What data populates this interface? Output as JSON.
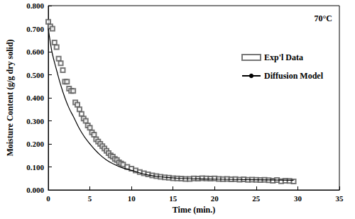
{
  "chart_data": {
    "type": "scatter",
    "annotation": "70°C",
    "x_label": "Time (min.)",
    "y_label": "Moisture Content (g/g dry solid)",
    "xlim": [
      0,
      35
    ],
    "xticks": [
      0,
      5,
      10,
      15,
      20,
      25,
      30,
      35
    ],
    "ylim": [
      0,
      0.8
    ],
    "yticks": [
      {
        "value": 0,
        "label": "0.000"
      },
      {
        "value": 0.1,
        "label": "0.100"
      },
      {
        "value": 0.2,
        "label": "0.200"
      },
      {
        "value": 0.3,
        "label": "0.300"
      },
      {
        "value": 0.4,
        "label": "0.400"
      },
      {
        "value": 0.5,
        "label": "0.500"
      },
      {
        "value": 0.6,
        "label": "0.600"
      },
      {
        "value": 0.7,
        "label": "0.700"
      },
      {
        "value": 0.8,
        "label": "0.800"
      }
    ],
    "grid": false,
    "legend": "upper right",
    "series": [
      {
        "name": "Exp'l Data",
        "type": "scatter",
        "marker": "square",
        "color": "#555555",
        "x": [
          0,
          0.25,
          0.5,
          0.75,
          1.0,
          1.25,
          1.5,
          1.75,
          2.0,
          2.25,
          2.5,
          2.75,
          3.0,
          3.25,
          3.5,
          3.75,
          4.0,
          4.25,
          4.5,
          4.75,
          5.0,
          5.25,
          5.5,
          5.75,
          6.0,
          6.25,
          6.5,
          6.75,
          7.0,
          7.25,
          7.5,
          7.75,
          8.0,
          8.25,
          8.5,
          8.75,
          9.0,
          9.5,
          10,
          10.5,
          11,
          11.5,
          12,
          12.5,
          13,
          13.5,
          14,
          14.5,
          15,
          15.5,
          16,
          16.5,
          17,
          17.5,
          18,
          18.5,
          19,
          19.5,
          20,
          20.5,
          21,
          21.5,
          22,
          22.5,
          23,
          23.5,
          24,
          24.5,
          25,
          25.5,
          26,
          26.5,
          27,
          27.5,
          28,
          28.5,
          29,
          29.5
        ],
        "values": [
          0.73,
          0.71,
          0.7,
          0.64,
          0.62,
          0.57,
          0.55,
          0.52,
          0.47,
          0.47,
          0.44,
          0.43,
          0.43,
          0.38,
          0.37,
          0.35,
          0.33,
          0.31,
          0.3,
          0.28,
          0.27,
          0.25,
          0.24,
          0.22,
          0.21,
          0.2,
          0.19,
          0.18,
          0.17,
          0.16,
          0.15,
          0.145,
          0.135,
          0.13,
          0.12,
          0.115,
          0.11,
          0.1,
          0.092,
          0.085,
          0.078,
          0.072,
          0.068,
          0.063,
          0.06,
          0.057,
          0.055,
          0.053,
          0.051,
          0.05,
          0.049,
          0.048,
          0.048,
          0.05,
          0.049,
          0.051,
          0.05,
          0.049,
          0.05,
          0.048,
          0.047,
          0.048,
          0.046,
          0.047,
          0.045,
          0.046,
          0.044,
          0.045,
          0.044,
          0.043,
          0.044,
          0.042,
          0.04,
          0.043,
          0.038,
          0.04,
          0.039,
          0.037
        ]
      },
      {
        "name": "Diffusion Model",
        "type": "line",
        "line_style": "solid",
        "color": "#000000",
        "x": [
          0,
          0.25,
          0.5,
          1,
          1.5,
          2,
          2.5,
          3,
          4,
          5,
          6,
          7,
          8,
          9,
          10,
          12,
          14,
          16,
          18,
          20,
          25,
          29.5
        ],
        "values": [
          0.7,
          0.64,
          0.59,
          0.52,
          0.455,
          0.4,
          0.355,
          0.32,
          0.25,
          0.2,
          0.16,
          0.13,
          0.11,
          0.095,
          0.085,
          0.065,
          0.055,
          0.05,
          0.048,
          0.047,
          0.044,
          0.042
        ]
      }
    ]
  }
}
